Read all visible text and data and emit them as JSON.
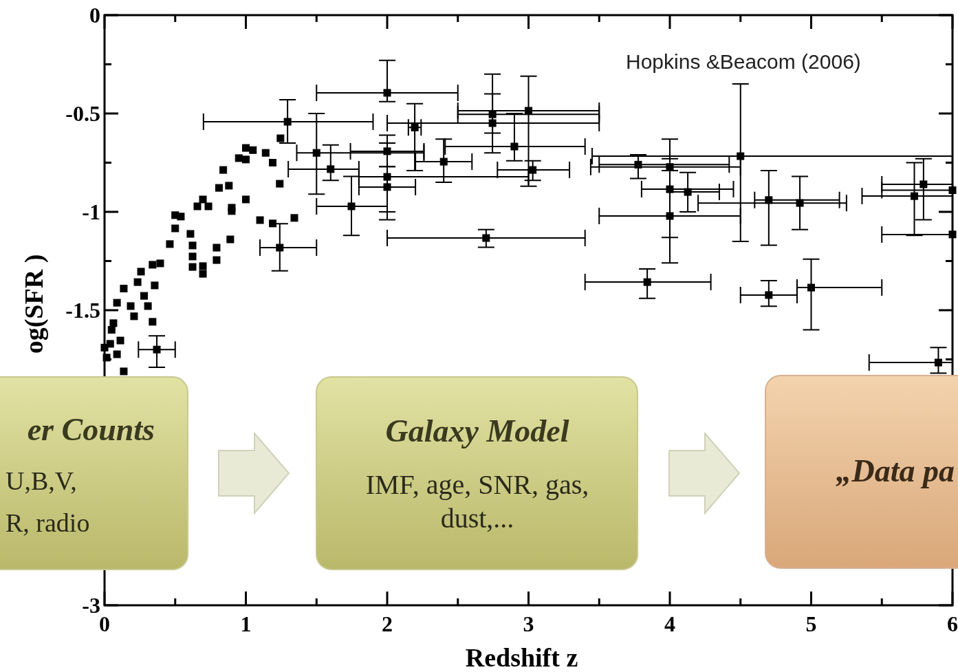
{
  "chart_data": {
    "type": "scatter",
    "xlabel": "Redshift z",
    "ylabel": "og(SFR )",
    "marker": "square",
    "grid": false,
    "xlim": [
      0,
      6
    ],
    "ylim": [
      -3,
      0
    ],
    "xticks": [
      0,
      {
        "value": 0.5,
        "label": null
      },
      1,
      {
        "value": 1.5,
        "label": null
      },
      2,
      {
        "value": 2.5,
        "label": null
      },
      3,
      {
        "value": 3.5,
        "label": null
      },
      4,
      {
        "value": 4.5,
        "label": null
      },
      5,
      {
        "value": 5.5,
        "label": null
      },
      6
    ],
    "yticks": [
      -3,
      {
        "value": -2.75,
        "label": null
      },
      {
        "value": -2.5,
        "label": null
      },
      {
        "value": -2.25,
        "label": null
      },
      {
        "value": -2,
        "label": null
      },
      {
        "value": -1.75,
        "label": null
      },
      -1.5,
      {
        "value": -1.25,
        "label": null
      },
      -1,
      {
        "value": -0.75,
        "label": null
      },
      -0.5,
      {
        "value": -0.25,
        "label": null
      },
      0
    ],
    "annotations": [
      "Hopkins &Beacom (2006)",
      "er Counts",
      "U,B,V,",
      "R,  radio",
      "Galaxy Model",
      "IMF, age, SNR, gas,",
      "dust,...",
      "„Data pa"
    ],
    "series": [
      {
        "color": "#000000",
        "x": [
          0.0,
          0.015,
          0.04,
          0.05,
          0.063,
          0.088,
          0.088,
          0.112,
          0.136,
          0.136,
          0.185,
          0.209,
          0.234,
          0.258,
          0.28,
          0.307,
          0.34,
          0.34,
          0.355,
          0.37,
          0.394,
          0.462,
          0.5,
          0.5,
          0.54,
          0.608,
          0.623,
          0.623,
          0.623,
          0.657,
          0.696,
          0.696,
          0.696,
          0.735,
          0.793,
          0.793,
          0.81,
          0.84,
          0.88,
          0.89,
          0.9,
          0.9,
          0.95,
          1.0,
          1.0,
          1.0,
          1.05,
          1.1,
          1.14,
          1.19,
          1.19,
          1.24,
          1.24,
          1.245,
          1.295,
          1.343,
          1.5,
          1.6,
          1.747,
          2.0,
          2.0,
          2.0,
          2.0,
          2.195,
          2.4,
          2.7,
          2.745,
          2.745,
          2.9,
          3.0,
          3.03,
          3.776,
          3.84,
          4.0,
          4.0,
          4.0,
          4.127,
          4.5,
          4.7,
          4.7,
          4.92,
          5.0,
          5.73,
          5.795,
          5.9,
          6.0,
          6.0
        ],
        "values": [
          -1.69,
          -1.741,
          -1.671,
          -1.6,
          -1.566,
          -1.724,
          -1.462,
          -1.654,
          -1.811,
          -1.39,
          -1.479,
          -1.531,
          -1.357,
          -1.304,
          -1.427,
          -1.479,
          -1.559,
          -1.269,
          -1.374,
          -1.7,
          -1.262,
          -1.164,
          -1.017,
          -1.084,
          -1.024,
          -1.112,
          -1.171,
          -1.227,
          -1.28,
          -0.972,
          -0.937,
          -1.276,
          -1.315,
          -0.972,
          -1.182,
          -1.245,
          -0.878,
          -0.787,
          -0.867,
          -1.14,
          -0.979,
          -0.996,
          -0.727,
          -0.675,
          -0.734,
          -0.937,
          -0.686,
          -1.042,
          -0.7,
          -0.75,
          -1.059,
          -0.857,
          -1.182,
          -0.626,
          -0.542,
          -1.031,
          -0.7,
          -0.783,
          -0.972,
          -0.395,
          -0.692,
          -0.822,
          -0.874,
          -0.571,
          -0.745,
          -1.133,
          -0.504,
          -0.549,
          -0.668,
          -0.486,
          -0.787,
          -0.76,
          -1.357,
          -0.772,
          -0.885,
          -1.021,
          -0.899,
          -0.717,
          -0.94,
          -1.423,
          -0.955,
          -1.385,
          -0.92,
          -0.86,
          -1.766,
          -0.89,
          -1.115
        ],
        "errors": [
          null,
          null,
          null,
          null,
          null,
          null,
          null,
          null,
          null,
          null,
          null,
          null,
          null,
          null,
          null,
          null,
          null,
          null,
          null,
          [
            -1.79,
            -1.63
          ],
          null,
          null,
          null,
          null,
          null,
          null,
          null,
          null,
          null,
          null,
          null,
          null,
          null,
          null,
          null,
          null,
          null,
          null,
          null,
          null,
          null,
          null,
          null,
          null,
          null,
          null,
          null,
          null,
          null,
          null,
          null,
          null,
          [
            -1.3,
            -1.06
          ],
          null,
          [
            -0.65,
            -0.43
          ],
          null,
          [
            -0.91,
            -0.5
          ],
          [
            -0.84,
            -0.66
          ],
          [
            -1.12,
            -0.82
          ],
          [
            -0.44,
            -0.23
          ],
          [
            -0.77,
            -0.65
          ],
          [
            -1.0,
            -0.61
          ],
          [
            -1.04,
            -0.77
          ],
          [
            -0.79,
            -0.45
          ],
          [
            -0.85,
            -0.63
          ],
          [
            -1.18,
            -1.09
          ],
          [
            -0.6,
            -0.3
          ],
          [
            -0.7,
            -0.4
          ],
          [
            -0.74,
            -0.5
          ],
          [
            -0.87,
            -0.31
          ],
          [
            -0.84,
            -0.74
          ],
          [
            -0.83,
            -0.71
          ],
          [
            -1.44,
            -1.29
          ],
          [
            -0.79,
            -0.73
          ],
          [
            -1.13,
            -0.63
          ],
          [
            -1.26,
            -0.79
          ],
          [
            -1.0,
            -0.8
          ],
          [
            -1.15,
            -0.35
          ],
          [
            -1.17,
            -0.79
          ],
          [
            -1.48,
            -1.35
          ],
          [
            -1.09,
            -0.82
          ],
          [
            -1.6,
            -1.24
          ],
          [
            -1.12,
            -0.75
          ],
          [
            -1.04,
            -0.73
          ],
          [
            -1.82,
            -1.69
          ],
          null,
          null
        ],
        "xerrors": [
          null,
          null,
          null,
          null,
          null,
          null,
          null,
          null,
          null,
          null,
          null,
          null,
          null,
          null,
          null,
          null,
          null,
          null,
          null,
          [
            0.24,
            0.5
          ],
          null,
          null,
          null,
          null,
          null,
          null,
          null,
          null,
          null,
          null,
          null,
          null,
          null,
          null,
          null,
          null,
          null,
          null,
          null,
          null,
          null,
          null,
          null,
          null,
          null,
          null,
          null,
          null,
          null,
          null,
          null,
          null,
          [
            1.1,
            1.5
          ],
          null,
          [
            0.7,
            1.9
          ],
          null,
          [
            1.36,
            2.26
          ],
          [
            1.3,
            1.8
          ],
          [
            1.5,
            2.0
          ],
          [
            1.5,
            2.5
          ],
          [
            1.74,
            2.26
          ],
          [
            1.8,
            3.0
          ],
          [
            1.8,
            2.2
          ],
          [
            2.15,
            2.24
          ],
          [
            2.2,
            2.6
          ],
          [
            2.0,
            3.4
          ],
          [
            2.5,
            3.5
          ],
          [
            2.0,
            3.5
          ],
          [
            2.41,
            3.4
          ],
          [
            2.5,
            3.5
          ],
          [
            2.78,
            3.29
          ],
          [
            3.5,
            4.42
          ],
          [
            3.4,
            4.29
          ],
          [
            3.44,
            4.5
          ],
          [
            3.8,
            4.45
          ],
          [
            3.5,
            4.5
          ],
          [
            4.0,
            4.35
          ],
          [
            3.45,
            6.0
          ],
          [
            4.6,
            5.2
          ],
          [
            4.5,
            4.9
          ],
          [
            4.2,
            5.25
          ],
          [
            4.9,
            5.5
          ],
          [
            5.36,
            6.0
          ],
          [
            5.5,
            6.0
          ],
          [
            5.41,
            6.0
          ],
          [
            5.5,
            6.0
          ],
          [
            5.5,
            6.0
          ]
        ]
      }
    ]
  }
}
